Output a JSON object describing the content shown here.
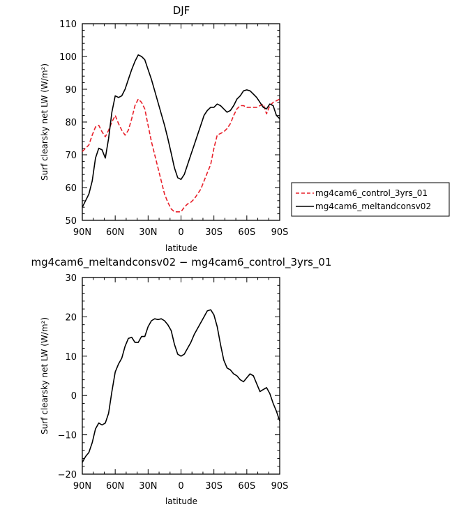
{
  "chart_data": [
    {
      "type": "line",
      "title": "DJF",
      "xlabel": "latitude",
      "ylabel": "Surf clearsky net LW (W/m²)",
      "xlim": [
        90,
        -90
      ],
      "ylim": [
        50,
        110
      ],
      "x_ticks": [
        90,
        60,
        30,
        0,
        -30,
        -60,
        -90
      ],
      "x_tick_labels": [
        "90N",
        "60N",
        "30N",
        "0",
        "30S",
        "60S",
        "90S"
      ],
      "y_ticks": [
        50,
        60,
        70,
        80,
        90,
        100,
        110
      ],
      "y_tick_labels": [
        "50",
        "60",
        "70",
        "80",
        "90",
        "100",
        "110"
      ],
      "legend_position": "outside-right",
      "series": [
        {
          "name": "mg4cam6_control_3yrs_01",
          "color": "#e8202a",
          "dash": "dashed",
          "x": [
            90,
            87,
            84,
            81,
            78,
            75,
            72,
            69,
            66,
            63,
            60,
            57,
            54,
            51,
            48,
            45,
            42,
            39,
            36,
            33,
            30,
            27,
            24,
            21,
            18,
            15,
            12,
            9,
            6,
            3,
            0,
            -3,
            -6,
            -9,
            -12,
            -15,
            -18,
            -21,
            -24,
            -27,
            -30,
            -33,
            -36,
            -39,
            -42,
            -45,
            -48,
            -51,
            -54,
            -57,
            -60,
            -63,
            -66,
            -69,
            -72,
            -75,
            -78,
            -81,
            -84,
            -87,
            -90
          ],
          "y": [
            71,
            72,
            73,
            76,
            78.5,
            79,
            77,
            75.5,
            77.5,
            80,
            82,
            79.5,
            77.5,
            76,
            77.5,
            81,
            85,
            87,
            86,
            84,
            79,
            74,
            70,
            66,
            62,
            58,
            55.5,
            53.5,
            52.6,
            52.6,
            52.6,
            54,
            55,
            55.5,
            56.5,
            58,
            59.5,
            62,
            64.5,
            67,
            72,
            76,
            76.5,
            77,
            78,
            79.5,
            82,
            84,
            85,
            85,
            84.5,
            84.5,
            84.5,
            84.5,
            85,
            85.5,
            82.5,
            85,
            86,
            86.5,
            87
          ]
        },
        {
          "name": "mg4cam6_meltandconsv02",
          "color": "#000000",
          "dash": "solid",
          "x": [
            90,
            87,
            84,
            81,
            78,
            75,
            72,
            69,
            66,
            63,
            60,
            57,
            54,
            51,
            48,
            45,
            42,
            39,
            36,
            33,
            30,
            27,
            24,
            21,
            18,
            15,
            12,
            9,
            6,
            3,
            0,
            -3,
            -6,
            -9,
            -12,
            -15,
            -18,
            -21,
            -24,
            -27,
            -30,
            -33,
            -36,
            -39,
            -42,
            -45,
            -48,
            -51,
            -54,
            -57,
            -60,
            -63,
            -66,
            -69,
            -72,
            -75,
            -78,
            -81,
            -84,
            -87,
            -90
          ],
          "y": [
            54,
            56,
            58,
            62,
            69,
            72,
            71.5,
            69,
            75,
            83,
            88,
            87.5,
            88,
            90,
            93,
            96,
            98.5,
            100.5,
            100,
            99,
            96,
            93,
            89.5,
            86,
            82.5,
            79,
            75,
            70.5,
            66,
            63,
            62.5,
            64,
            67,
            70,
            73,
            76,
            79,
            82,
            83.5,
            84.5,
            84.5,
            85.5,
            85,
            84,
            83,
            83.5,
            85,
            87,
            88,
            89.5,
            89.8,
            89.5,
            88.5,
            87.5,
            86,
            84.5,
            84,
            85.5,
            85,
            82,
            81
          ]
        }
      ]
    },
    {
      "type": "line",
      "title": "mg4cam6_meltandconsv02 − mg4cam6_control_3yrs_01",
      "xlabel": "latitude",
      "ylabel": "Surf clearsky net LW (W/m²)",
      "xlim": [
        90,
        -90
      ],
      "ylim": [
        -20,
        30
      ],
      "x_ticks": [
        90,
        60,
        30,
        0,
        -30,
        -60,
        -90
      ],
      "x_tick_labels": [
        "90N",
        "60N",
        "30N",
        "0",
        "30S",
        "60S",
        "90S"
      ],
      "y_ticks": [
        -20,
        -10,
        0,
        10,
        20,
        30
      ],
      "y_tick_labels": [
        "−20",
        "−10",
        "0",
        "10",
        "20",
        "30"
      ],
      "series": [
        {
          "color": "#000000",
          "dash": "solid",
          "x": [
            90,
            87,
            84,
            81,
            78,
            75,
            72,
            69,
            66,
            63,
            60,
            57,
            54,
            51,
            48,
            45,
            42,
            39,
            36,
            33,
            30,
            27,
            24,
            21,
            18,
            15,
            12,
            9,
            6,
            3,
            0,
            -3,
            -6,
            -9,
            -12,
            -15,
            -18,
            -21,
            -24,
            -27,
            -30,
            -33,
            -36,
            -39,
            -42,
            -45,
            -48,
            -51,
            -54,
            -57,
            -60,
            -63,
            -66,
            -69,
            -72,
            -75,
            -78,
            -81,
            -84,
            -87,
            -90
          ],
          "y": [
            -17,
            -15.5,
            -14.5,
            -12,
            -8.5,
            -7,
            -7.5,
            -7,
            -4.5,
            1,
            6,
            8,
            9.5,
            12.5,
            14.5,
            14.8,
            13.5,
            13.5,
            15,
            15,
            17.5,
            19,
            19.5,
            19.3,
            19.5,
            19,
            18,
            16.5,
            13,
            10.5,
            10,
            10.5,
            12,
            13.5,
            15.5,
            17,
            18.5,
            20,
            21.5,
            21.8,
            20.5,
            17.5,
            13,
            9,
            7,
            6.5,
            5.5,
            5,
            4,
            3.5,
            4.5,
            5.5,
            5,
            3,
            1,
            1.5,
            2,
            0.5,
            -2,
            -4,
            -6.5
          ]
        }
      ]
    }
  ]
}
